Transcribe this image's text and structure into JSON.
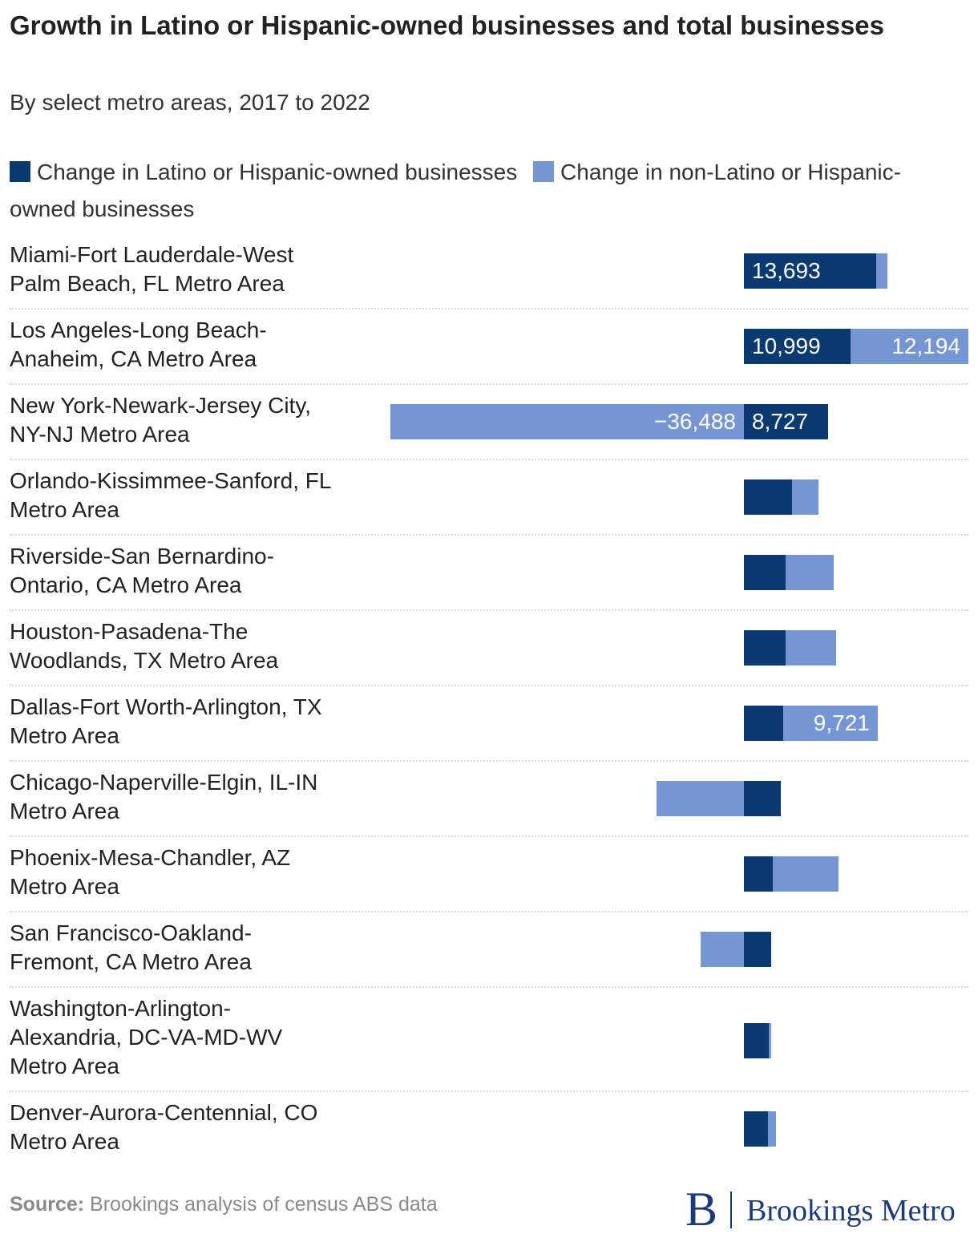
{
  "chart_data": {
    "type": "bar",
    "orientation": "horizontal",
    "stacked": true,
    "title": "Growth in Latino or Hispanic-owned businesses and total businesses",
    "subtitle": "By select metro areas, 2017 to 2022",
    "colors": {
      "latino": "#0a3a70",
      "non_latino": "#7596d2"
    },
    "xlim": [
      -36488,
      23193
    ],
    "legend": {
      "latino": "Change in Latino or Hispanic-owned businesses",
      "non_latino": "Change in non-Latino or Hispanic-owned businesses"
    },
    "categories": [
      [
        "Miami-Fort Lauderdale-West",
        "Palm Beach, FL Metro Area"
      ],
      [
        "Los Angeles-Long Beach-",
        "Anaheim, CA Metro Area"
      ],
      [
        "New York-Newark-Jersey City,",
        "NY-NJ Metro Area"
      ],
      [
        "Orlando-Kissimmee-Sanford, FL",
        "Metro Area"
      ],
      [
        "Riverside-San Bernardino-",
        "Ontario, CA Metro Area"
      ],
      [
        "Houston-Pasadena-The",
        "Woodlands, TX Metro Area"
      ],
      [
        "Dallas-Fort Worth-Arlington, TX",
        "Metro Area"
      ],
      [
        "Chicago-Naperville-Elgin, IL-IN",
        "Metro Area"
      ],
      [
        "Phoenix-Mesa-Chandler, AZ",
        "Metro Area"
      ],
      [
        "San Francisco-Oakland-",
        "Fremont, CA Metro Area"
      ],
      [
        "Washington-Arlington-",
        "Alexandria, DC-VA-MD-WV",
        "Metro Area"
      ],
      [
        "Denver-Aurora-Centennial, CO",
        "Metro Area"
      ]
    ],
    "series": [
      {
        "name": "latino",
        "values": [
          13693,
          10999,
          8727,
          5000,
          4300,
          4300,
          4100,
          3800,
          3000,
          2800,
          2600,
          2500
        ],
        "labels": [
          "13,693",
          "10,999",
          "8,727",
          null,
          null,
          null,
          null,
          null,
          null,
          null,
          null,
          null
        ]
      },
      {
        "name": "non_latino",
        "values": [
          1100,
          12194,
          -36488,
          2700,
          5000,
          5200,
          9721,
          -9000,
          6800,
          -4500,
          200,
          800
        ],
        "labels": [
          null,
          "12,194",
          "−36,488",
          null,
          null,
          null,
          "9,721",
          null,
          null,
          null,
          null,
          null
        ]
      }
    ]
  },
  "footer": {
    "source_label": "Source:",
    "source_text": " Brookings analysis of census ABS data",
    "logo_mark": "B",
    "logo_text": "Brookings Metro"
  }
}
